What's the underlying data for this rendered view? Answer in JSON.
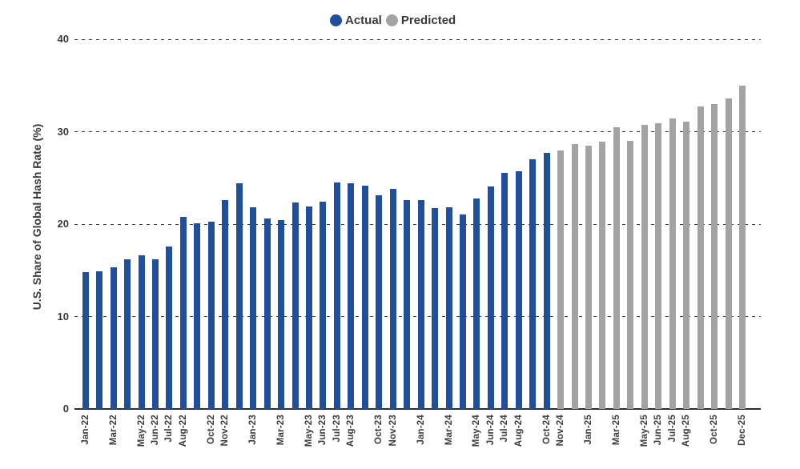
{
  "page": {
    "background": "#ffffff"
  },
  "legend": {
    "items": [
      {
        "label": "Actual",
        "color": "#1f4e9b"
      },
      {
        "label": "Predicted",
        "color": "#a3a3a5"
      }
    ]
  },
  "colors": {
    "actual_bar": "#1f4e9b",
    "predicted_bar": "#a3a3a5",
    "text": "#3a3a3a",
    "axis_line": "#2d2d2d",
    "gridline": "#3d3d3d"
  },
  "chart_data": {
    "type": "bar",
    "title": "",
    "xlabel": "",
    "ylabel": "U.S. Share of Global Hash Rate (%)",
    "ylim": [
      0,
      40
    ],
    "yticks": [
      0,
      10,
      20,
      30,
      40
    ],
    "grid": "horizontal dashed",
    "legend_position": "top-center",
    "categories": [
      "Jan-22",
      "Feb-22",
      "Mar-22",
      "Apr-22",
      "May-22",
      "Jun-22",
      "Jul-22",
      "Aug-22",
      "Sep-22",
      "Oct-22",
      "Nov-22",
      "Dec-22",
      "Jan-23",
      "Feb-23",
      "Mar-23",
      "Apr-23",
      "May-23",
      "Jun-23",
      "Jul-23",
      "Aug-23",
      "Sep-23",
      "Oct-23",
      "Nov-23",
      "Dec-23",
      "Jan-24",
      "Feb-24",
      "Mar-24",
      "Apr-24",
      "May-24",
      "Jun-24",
      "Jul-24",
      "Aug-24",
      "Sep-24",
      "Oct-24",
      "Nov-24",
      "Dec-24",
      "Jan-25",
      "Feb-25",
      "Mar-25",
      "Apr-25",
      "May-25",
      "Jun-25",
      "Jul-25",
      "Aug-25",
      "Sep-25",
      "Oct-25",
      "Nov-25",
      "Dec-25"
    ],
    "series": [
      {
        "name": "Actual",
        "color": "#1f4e9b",
        "start": "Jan-22",
        "end": "Oct-24",
        "values": [
          14.8,
          14.9,
          15.3,
          16.2,
          16.6,
          16.2,
          17.6,
          20.8,
          20.1,
          20.3,
          22.6,
          24.4,
          21.8,
          20.6,
          20.4,
          22.3,
          21.9,
          22.4,
          24.5,
          24.4,
          24.2,
          23.1,
          23.8,
          22.6,
          22.6,
          21.7,
          21.8,
          21.0,
          22.8,
          24.1,
          25.5,
          25.7,
          27.0,
          27.7
        ]
      },
      {
        "name": "Predicted",
        "color": "#a3a3a5",
        "start": "Nov-24",
        "end": "Dec-25",
        "values": [
          28.0,
          28.7,
          28.5,
          28.9,
          30.5,
          29.0,
          30.7,
          30.9,
          31.4,
          31.1,
          32.7,
          33.0,
          33.6,
          35.0
        ]
      }
    ],
    "x_tick_labels_shown": [
      "Jan-22",
      "Mar-22",
      "May-22",
      "Jun-22",
      "Jul-22",
      "Aug-22",
      "Oct-22",
      "Nov-22",
      "Jan-23",
      "Mar-23",
      "May-23",
      "Jun-23",
      "Jul-23",
      "Aug-23",
      "Oct-23",
      "Nov-23",
      "Jan-24",
      "Mar-24",
      "May-24",
      "Jun-24",
      "Jul-24",
      "Aug-24",
      "Oct-24",
      "Nov-24",
      "Jan-25",
      "Mar-25",
      "May-25",
      "Jun-25",
      "Jul-25",
      "Aug-25",
      "Oct-25",
      "Dec-25"
    ]
  }
}
